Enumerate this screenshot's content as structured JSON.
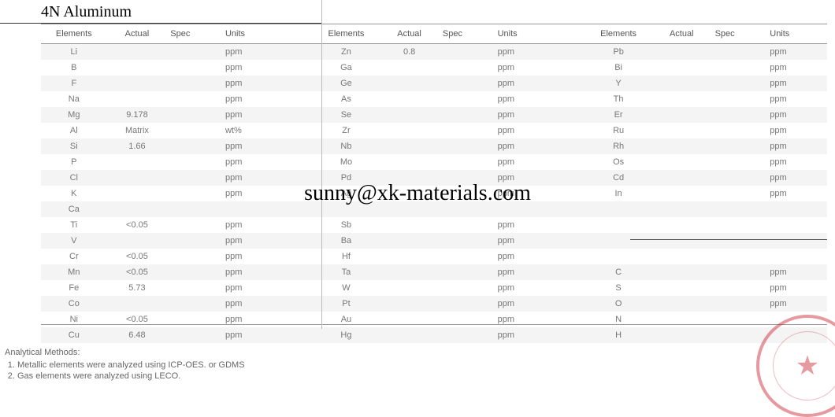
{
  "title": "4N Aluminum",
  "watermark": "sunny@xk-materials.com",
  "headers": [
    "Elements",
    "Actual",
    "Spec",
    "Units"
  ],
  "rows": [
    {
      "e1": "Li",
      "a1": "",
      "s1": "",
      "u1": "ppm",
      "e2": "Zn",
      "a2": "0.8",
      "s2": "",
      "u2": "ppm",
      "e3": "Pb",
      "a3": "",
      "s3": "",
      "u3": "ppm"
    },
    {
      "e1": "B",
      "a1": "",
      "s1": "",
      "u1": "ppm",
      "e2": "Ga",
      "a2": "",
      "s2": "",
      "u2": "ppm",
      "e3": "Bi",
      "a3": "",
      "s3": "",
      "u3": "ppm"
    },
    {
      "e1": "F",
      "a1": "",
      "s1": "",
      "u1": "ppm",
      "e2": "Ge",
      "a2": "",
      "s2": "",
      "u2": "ppm",
      "e3": "Y",
      "a3": "",
      "s3": "",
      "u3": "ppm"
    },
    {
      "e1": "Na",
      "a1": "",
      "s1": "",
      "u1": "ppm",
      "e2": "As",
      "a2": "",
      "s2": "",
      "u2": "ppm",
      "e3": "Th",
      "a3": "",
      "s3": "",
      "u3": "ppm"
    },
    {
      "e1": "Mg",
      "a1": "9.178",
      "s1": "",
      "u1": "ppm",
      "e2": "Se",
      "a2": "",
      "s2": "",
      "u2": "ppm",
      "e3": "Er",
      "a3": "",
      "s3": "",
      "u3": "ppm"
    },
    {
      "e1": "Al",
      "a1": "Matrix",
      "s1": "",
      "u1": "wt%",
      "e2": "Zr",
      "a2": "",
      "s2": "",
      "u2": "ppm",
      "e3": "Ru",
      "a3": "",
      "s3": "",
      "u3": "ppm"
    },
    {
      "e1": "Si",
      "a1": "1.66",
      "s1": "",
      "u1": "ppm",
      "e2": "Nb",
      "a2": "",
      "s2": "",
      "u2": "ppm",
      "e3": "Rh",
      "a3": "",
      "s3": "",
      "u3": "ppm"
    },
    {
      "e1": "P",
      "a1": "",
      "s1": "",
      "u1": "ppm",
      "e2": "Mo",
      "a2": "",
      "s2": "",
      "u2": "ppm",
      "e3": "Os",
      "a3": "",
      "s3": "",
      "u3": "ppm"
    },
    {
      "e1": "Cl",
      "a1": "",
      "s1": "",
      "u1": "ppm",
      "e2": "Pd",
      "a2": "",
      "s2": "",
      "u2": "ppm",
      "e3": "Cd",
      "a3": "",
      "s3": "",
      "u3": "ppm"
    },
    {
      "e1": "K",
      "a1": "",
      "s1": "",
      "u1": "ppm",
      "e2": "Ag",
      "a2": "",
      "s2": "",
      "u2": "ppm",
      "e3": "In",
      "a3": "",
      "s3": "",
      "u3": "ppm"
    },
    {
      "e1": "Ca",
      "a1": "",
      "s1": "",
      "u1": "",
      "e2": "",
      "a2": "",
      "s2": "",
      "u2": "",
      "e3": "",
      "a3": "",
      "s3": "",
      "u3": ""
    },
    {
      "e1": "Ti",
      "a1": "<0.05",
      "s1": "",
      "u1": "ppm",
      "e2": "Sb",
      "a2": "",
      "s2": "",
      "u2": "ppm",
      "e3": "",
      "a3": "",
      "s3": "",
      "u3": ""
    },
    {
      "e1": "V",
      "a1": "",
      "s1": "",
      "u1": "ppm",
      "e2": "Ba",
      "a2": "",
      "s2": "",
      "u2": "ppm",
      "e3": "",
      "a3": "",
      "s3": "",
      "u3": ""
    },
    {
      "e1": "Cr",
      "a1": "<0.05",
      "s1": "",
      "u1": "ppm",
      "e2": "Hf",
      "a2": "",
      "s2": "",
      "u2": "ppm",
      "e3": "",
      "a3": "",
      "s3": "",
      "u3": ""
    },
    {
      "e1": "Mn",
      "a1": "<0.05",
      "s1": "",
      "u1": "ppm",
      "e2": "Ta",
      "a2": "",
      "s2": "",
      "u2": "ppm",
      "e3": "C",
      "a3": "",
      "s3": "",
      "u3": "ppm"
    },
    {
      "e1": "Fe",
      "a1": "5.73",
      "s1": "",
      "u1": "ppm",
      "e2": "W",
      "a2": "",
      "s2": "",
      "u2": "ppm",
      "e3": "S",
      "a3": "",
      "s3": "",
      "u3": "ppm"
    },
    {
      "e1": "Co",
      "a1": "",
      "s1": "",
      "u1": "ppm",
      "e2": "Pt",
      "a2": "",
      "s2": "",
      "u2": "ppm",
      "e3": "O",
      "a3": "",
      "s3": "",
      "u3": "ppm"
    },
    {
      "e1": "Ni",
      "a1": "<0.05",
      "s1": "",
      "u1": "ppm",
      "e2": "Au",
      "a2": "",
      "s2": "",
      "u2": "ppm",
      "e3": "N",
      "a3": "",
      "s3": "",
      "u3": ""
    },
    {
      "e1": "Cu",
      "a1": "6.48",
      "s1": "",
      "u1": "ppm",
      "e2": "Hg",
      "a2": "",
      "s2": "",
      "u2": "ppm",
      "e3": "H",
      "a3": "",
      "s3": "",
      "u3": ""
    }
  ],
  "footer": {
    "heading": "Analytical Methods:",
    "items": [
      "Metallic elements were analyzed using ICP-OES. or GDMS",
      "Gas elements were analyzed using LECO."
    ]
  },
  "colors": {
    "row_odd": "#f4f4f4",
    "row_even": "#ffffff",
    "text": "#666666",
    "border": "#999999",
    "stamp": "rgba(200,30,40,0.6)"
  }
}
